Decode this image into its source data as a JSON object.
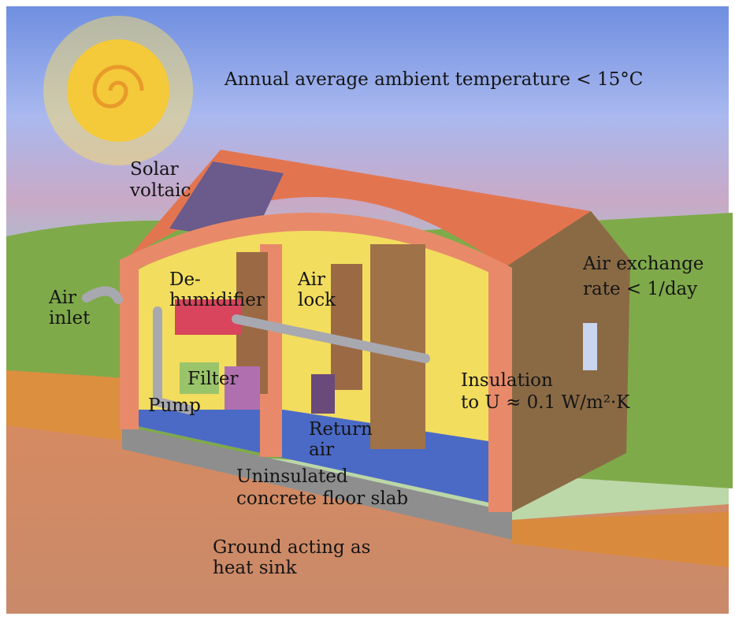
{
  "labels": [
    {
      "lines": [
        "Annual average ambient temperature < 15°C"
      ]
    },
    {
      "lines": [
        "Solar",
        "voltaic"
      ]
    },
    {
      "lines": [
        "Air exchange",
        "rate < 1/day"
      ]
    },
    {
      "lines": [
        "Air",
        "inlet"
      ]
    },
    {
      "lines": [
        "De-",
        "humidifier"
      ]
    },
    {
      "lines": [
        "Air",
        "lock"
      ]
    },
    {
      "lines": [
        "Filter"
      ]
    },
    {
      "lines": [
        "Pump"
      ]
    },
    {
      "lines": [
        "Insulation",
        "to U ≈ 0.1 W/m²·K"
      ]
    },
    {
      "lines": [
        "Return",
        "air"
      ]
    },
    {
      "lines": [
        "Uninsulated",
        "concrete floor slab"
      ]
    },
    {
      "lines": [
        "Ground acting as",
        "heat sink"
      ]
    }
  ]
}
